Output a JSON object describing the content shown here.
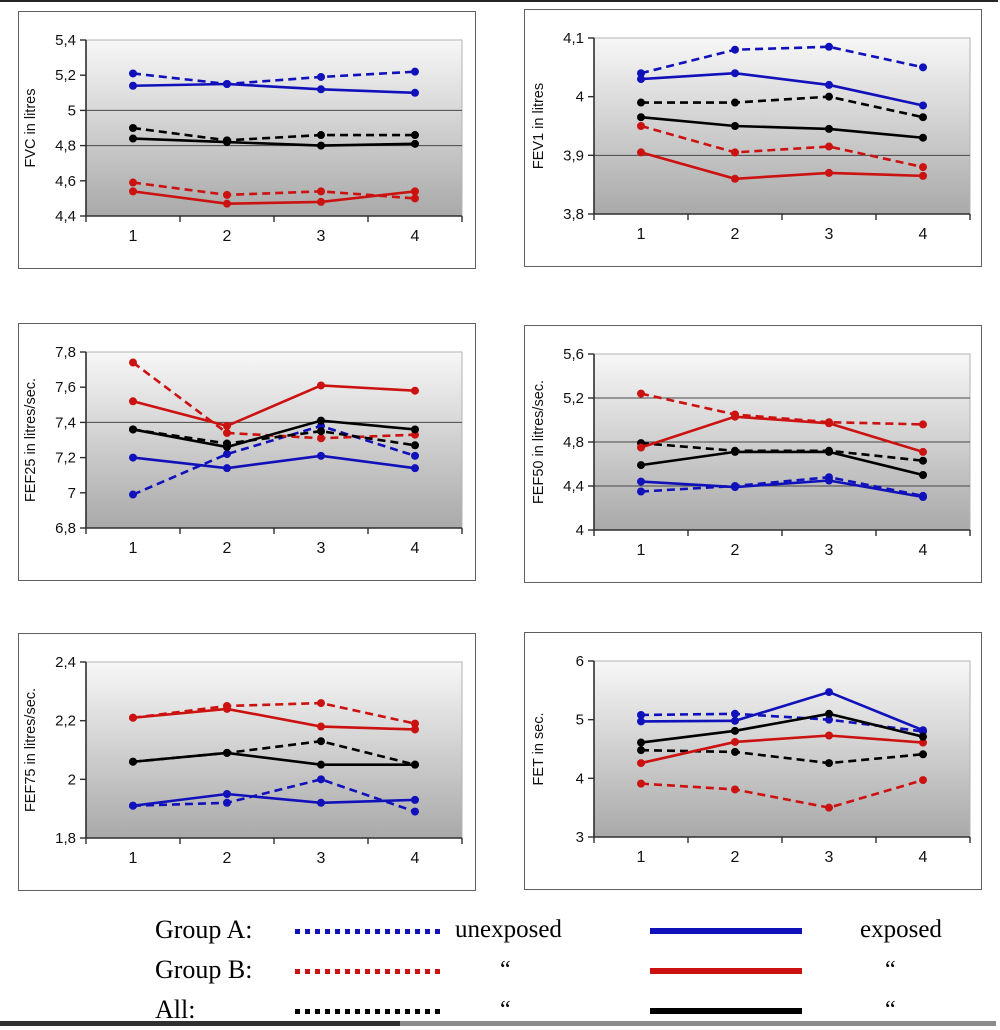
{
  "figure": {
    "description": "Six spirometry line charts over 4 measurement occasions for exposed and unexposed subjects in Group A, Group B and All",
    "x_axis_occasions": [
      "1",
      "2",
      "3",
      "4"
    ]
  },
  "legend": {
    "position": "bottom-shared",
    "unexposed_header": "unexposed",
    "exposed_header": "exposed",
    "ditto_mark": "“",
    "rows": [
      {
        "label": "Group A:",
        "color": "#1111bb",
        "unexposed_text": "unexposed",
        "exposed_text": "exposed"
      },
      {
        "label": "Group B:",
        "color": "#cc1111",
        "unexposed_text": "“",
        "exposed_text": "“"
      },
      {
        "label": "All:",
        "color": "#000000",
        "unexposed_text": "“",
        "exposed_text": "“"
      }
    ]
  },
  "chart_data": [
    {
      "type": "line",
      "title": "",
      "ylabel": "FVC in litres",
      "x": [
        1,
        2,
        3,
        4
      ],
      "xtick_labels": [
        "1",
        "2",
        "3",
        "4"
      ],
      "ylim": [
        4.4,
        5.4
      ],
      "ytick_values": [
        4.4,
        4.6,
        4.8,
        5.0,
        5.2,
        5.4
      ],
      "ytick_labels": [
        "4,4",
        "4,6",
        "4,8",
        "5",
        "5,2",
        "5,4"
      ],
      "gridlines": [
        5.0,
        4.8
      ],
      "series": [
        {
          "name": "Group A unexposed",
          "color": "#1111bb",
          "dash": true,
          "values": [
            5.21,
            5.15,
            5.19,
            5.22
          ]
        },
        {
          "name": "Group A exposed",
          "color": "#1111bb",
          "dash": false,
          "values": [
            5.14,
            5.15,
            5.12,
            5.1
          ]
        },
        {
          "name": "Group B unexposed",
          "color": "#cc1111",
          "dash": true,
          "values": [
            4.59,
            4.52,
            4.54,
            4.5
          ]
        },
        {
          "name": "Group B exposed",
          "color": "#cc1111",
          "dash": false,
          "values": [
            4.54,
            4.47,
            4.48,
            4.54
          ]
        },
        {
          "name": "All unexposed",
          "color": "#000000",
          "dash": true,
          "values": [
            4.9,
            4.83,
            4.86,
            4.86
          ]
        },
        {
          "name": "All exposed",
          "color": "#000000",
          "dash": false,
          "values": [
            4.84,
            4.82,
            4.8,
            4.81
          ]
        }
      ]
    },
    {
      "type": "line",
      "title": "",
      "ylabel": "FEV1 in litres",
      "x": [
        1,
        2,
        3,
        4
      ],
      "xtick_labels": [
        "1",
        "2",
        "3",
        "4"
      ],
      "ylim": [
        3.8,
        4.1
      ],
      "ytick_values": [
        3.8,
        3.9,
        4.0,
        4.1
      ],
      "ytick_labels": [
        "3,8",
        "3,9",
        "4",
        "4,1"
      ],
      "gridlines": [
        3.9
      ],
      "series": [
        {
          "name": "Group A unexposed",
          "color": "#1111bb",
          "dash": true,
          "values": [
            4.04,
            4.08,
            4.085,
            4.05
          ]
        },
        {
          "name": "Group A exposed",
          "color": "#1111bb",
          "dash": false,
          "values": [
            4.03,
            4.04,
            4.02,
            3.985
          ]
        },
        {
          "name": "Group B unexposed",
          "color": "#cc1111",
          "dash": true,
          "values": [
            3.95,
            3.905,
            3.915,
            3.88
          ]
        },
        {
          "name": "Group B exposed",
          "color": "#cc1111",
          "dash": false,
          "values": [
            3.905,
            3.86,
            3.87,
            3.865
          ]
        },
        {
          "name": "All unexposed",
          "color": "#000000",
          "dash": true,
          "values": [
            3.99,
            3.99,
            4.0,
            3.965
          ]
        },
        {
          "name": "All exposed",
          "color": "#000000",
          "dash": false,
          "values": [
            3.965,
            3.95,
            3.945,
            3.93
          ]
        }
      ]
    },
    {
      "type": "line",
      "title": "",
      "ylabel": "FEF25 in litres/sec.",
      "x": [
        1,
        2,
        3,
        4
      ],
      "xtick_labels": [
        "1",
        "2",
        "3",
        "4"
      ],
      "ylim": [
        6.8,
        7.8
      ],
      "ytick_values": [
        6.8,
        7.0,
        7.2,
        7.4,
        7.6,
        7.8
      ],
      "ytick_labels": [
        "6,8",
        "7",
        "7,2",
        "7,4",
        "7,6",
        "7,8"
      ],
      "gridlines": [
        7.4
      ],
      "series": [
        {
          "name": "Group A unexposed",
          "color": "#1111bb",
          "dash": true,
          "values": [
            6.99,
            7.22,
            7.38,
            7.21
          ]
        },
        {
          "name": "Group A exposed",
          "color": "#1111bb",
          "dash": false,
          "values": [
            7.2,
            7.14,
            7.21,
            7.14
          ]
        },
        {
          "name": "Group B unexposed",
          "color": "#cc1111",
          "dash": true,
          "values": [
            7.74,
            7.34,
            7.31,
            7.33
          ]
        },
        {
          "name": "Group B exposed",
          "color": "#cc1111",
          "dash": false,
          "values": [
            7.52,
            7.38,
            7.61,
            7.58
          ]
        },
        {
          "name": "All unexposed",
          "color": "#000000",
          "dash": true,
          "values": [
            7.36,
            7.28,
            7.35,
            7.27
          ]
        },
        {
          "name": "All exposed",
          "color": "#000000",
          "dash": false,
          "values": [
            7.36,
            7.26,
            7.41,
            7.36
          ]
        }
      ]
    },
    {
      "type": "line",
      "title": "",
      "ylabel": "FEF50 in litres/sec.",
      "x": [
        1,
        2,
        3,
        4
      ],
      "xtick_labels": [
        "1",
        "2",
        "3",
        "4"
      ],
      "ylim": [
        4.0,
        5.6
      ],
      "ytick_values": [
        4.0,
        4.4,
        4.8,
        5.2,
        5.6
      ],
      "ytick_labels": [
        "4",
        "4,4",
        "4,8",
        "5,2",
        "5,6"
      ],
      "gridlines": [
        5.2,
        4.8,
        4.4
      ],
      "series": [
        {
          "name": "Group A unexposed",
          "color": "#1111bb",
          "dash": true,
          "values": [
            4.35,
            4.4,
            4.48,
            4.31
          ]
        },
        {
          "name": "Group A exposed",
          "color": "#1111bb",
          "dash": false,
          "values": [
            4.44,
            4.39,
            4.45,
            4.3
          ]
        },
        {
          "name": "Group B unexposed",
          "color": "#cc1111",
          "dash": true,
          "values": [
            5.24,
            5.05,
            4.98,
            4.96
          ]
        },
        {
          "name": "Group B exposed",
          "color": "#cc1111",
          "dash": false,
          "values": [
            4.75,
            5.03,
            4.97,
            4.71
          ]
        },
        {
          "name": "All unexposed",
          "color": "#000000",
          "dash": true,
          "values": [
            4.79,
            4.72,
            4.72,
            4.63
          ]
        },
        {
          "name": "All exposed",
          "color": "#000000",
          "dash": false,
          "values": [
            4.59,
            4.71,
            4.71,
            4.5
          ]
        }
      ]
    },
    {
      "type": "line",
      "title": "",
      "ylabel": "FEF75 in litres/sec.",
      "x": [
        1,
        2,
        3,
        4
      ],
      "xtick_labels": [
        "1",
        "2",
        "3",
        "4"
      ],
      "ylim": [
        1.8,
        2.4
      ],
      "ytick_values": [
        1.8,
        2.0,
        2.2,
        2.4
      ],
      "ytick_labels": [
        "1,8",
        "2",
        "2,2",
        "2,4"
      ],
      "gridlines": [],
      "series": [
        {
          "name": "Group A unexposed",
          "color": "#1111bb",
          "dash": true,
          "values": [
            1.91,
            1.92,
            2.0,
            1.89
          ]
        },
        {
          "name": "Group A exposed",
          "color": "#1111bb",
          "dash": false,
          "values": [
            1.91,
            1.95,
            1.92,
            1.93
          ]
        },
        {
          "name": "Group B unexposed",
          "color": "#cc1111",
          "dash": true,
          "values": [
            2.21,
            2.25,
            2.26,
            2.19
          ]
        },
        {
          "name": "Group B exposed",
          "color": "#cc1111",
          "dash": false,
          "values": [
            2.21,
            2.24,
            2.18,
            2.17
          ]
        },
        {
          "name": "All unexposed",
          "color": "#000000",
          "dash": true,
          "values": [
            2.06,
            2.09,
            2.13,
            2.05
          ]
        },
        {
          "name": "All exposed",
          "color": "#000000",
          "dash": false,
          "values": [
            2.06,
            2.09,
            2.05,
            2.05
          ]
        }
      ]
    },
    {
      "type": "line",
      "title": "",
      "ylabel": "FET in sec.",
      "x": [
        1,
        2,
        3,
        4
      ],
      "xtick_labels": [
        "1",
        "2",
        "3",
        "4"
      ],
      "ylim": [
        3.0,
        6.0
      ],
      "ytick_values": [
        3.0,
        4.0,
        5.0,
        6.0
      ],
      "ytick_labels": [
        "3",
        "4",
        "5",
        "6"
      ],
      "gridlines": [],
      "series": [
        {
          "name": "Group A unexposed",
          "color": "#1111bb",
          "dash": true,
          "values": [
            5.08,
            5.1,
            5.0,
            4.8
          ]
        },
        {
          "name": "Group A exposed",
          "color": "#1111bb",
          "dash": false,
          "values": [
            4.97,
            4.98,
            5.47,
            4.82
          ]
        },
        {
          "name": "Group B unexposed",
          "color": "#cc1111",
          "dash": true,
          "values": [
            3.91,
            3.81,
            3.5,
            3.97
          ]
        },
        {
          "name": "Group B exposed",
          "color": "#cc1111",
          "dash": false,
          "values": [
            4.26,
            4.62,
            4.73,
            4.61
          ]
        },
        {
          "name": "All unexposed",
          "color": "#000000",
          "dash": true,
          "values": [
            4.48,
            4.45,
            4.26,
            4.41
          ]
        },
        {
          "name": "All exposed",
          "color": "#000000",
          "dash": false,
          "values": [
            4.61,
            4.81,
            5.1,
            4.71
          ]
        }
      ]
    }
  ]
}
